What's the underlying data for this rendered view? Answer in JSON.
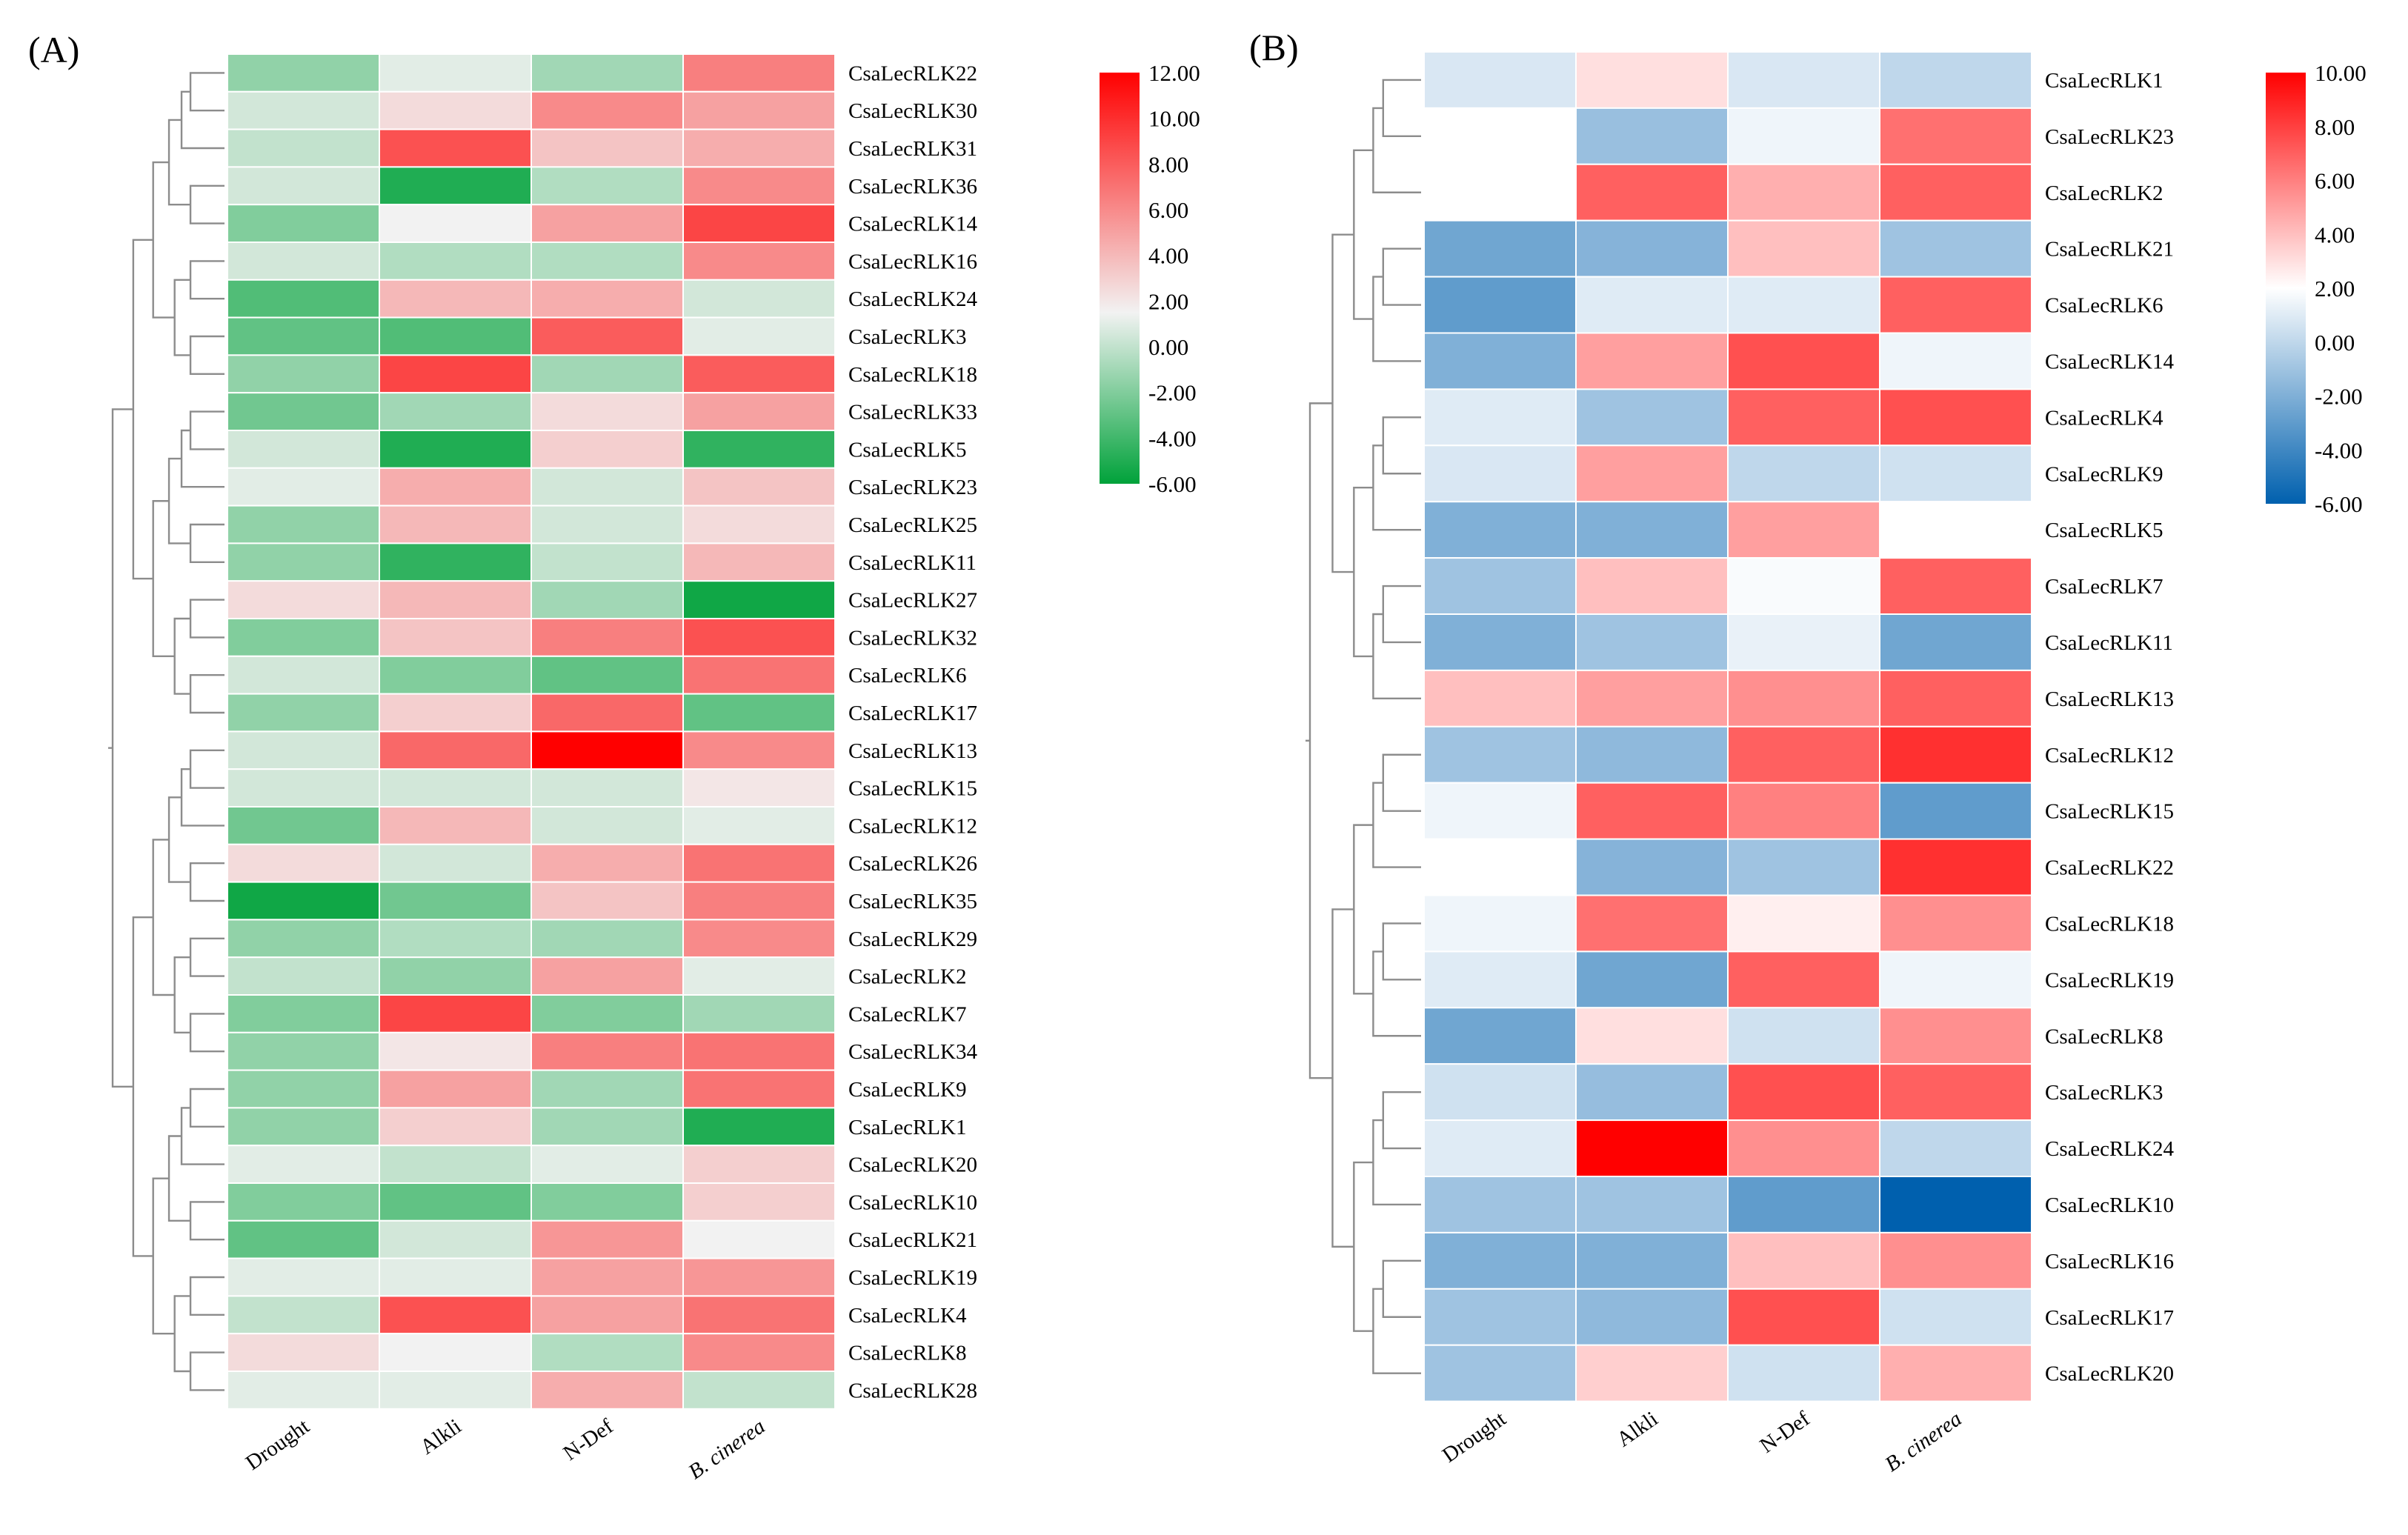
{
  "chart_data": [
    {
      "panel_label": "(A)",
      "type": "heatmap",
      "columns": [
        "Drought",
        "Alkli",
        "N-Def",
        "B. cinerea"
      ],
      "color_scale": {
        "min": -6,
        "max": 12,
        "ticks": [
          "12.00",
          "10.00",
          "8.00",
          "6.00",
          "4.00",
          "2.00",
          "0.00",
          "-2.00",
          "-4.00",
          "-6.00"
        ],
        "colors": [
          [
            -6,
            "#00a23a"
          ],
          [
            1.5,
            "#f2f2f2"
          ],
          [
            12,
            "#ff0000"
          ]
        ]
      },
      "rows": [
        {
          "gene": "CsaLecRLK22",
          "values": [
            -1.5,
            1.0,
            -1.0,
            6.5
          ]
        },
        {
          "gene": "CsaLecRLK30",
          "values": [
            0.5,
            2.5,
            6.0,
            5.0
          ]
        },
        {
          "gene": "CsaLecRLK31",
          "values": [
            0.0,
            8.5,
            3.5,
            4.5
          ]
        },
        {
          "gene": "CsaLecRLK36",
          "values": [
            0.5,
            -5.0,
            -0.5,
            6.0
          ]
        },
        {
          "gene": "CsaLecRLK14",
          "values": [
            -2.0,
            1.5,
            5.0,
            9.0
          ]
        },
        {
          "gene": "CsaLecRLK16",
          "values": [
            0.5,
            -0.5,
            -0.5,
            6.0
          ]
        },
        {
          "gene": "CsaLecRLK24",
          "values": [
            -3.5,
            4.0,
            4.5,
            0.5
          ]
        },
        {
          "gene": "CsaLecRLK3",
          "values": [
            -3.0,
            -3.5,
            8.0,
            1.0
          ]
        },
        {
          "gene": "CsaLecRLK18",
          "values": [
            -1.5,
            9.0,
            -1.0,
            8.0
          ]
        },
        {
          "gene": "CsaLecRLK33",
          "values": [
            -2.5,
            -1.0,
            2.5,
            5.0
          ]
        },
        {
          "gene": "CsaLecRLK5",
          "values": [
            0.5,
            -5.0,
            3.0,
            -4.5
          ]
        },
        {
          "gene": "CsaLecRLK23",
          "values": [
            1.0,
            4.5,
            0.5,
            3.5
          ]
        },
        {
          "gene": "CsaLecRLK25",
          "values": [
            -1.5,
            4.0,
            0.5,
            2.5
          ]
        },
        {
          "gene": "CsaLecRLK11",
          "values": [
            -1.5,
            -4.5,
            0.0,
            4.0
          ]
        },
        {
          "gene": "CsaLecRLK27",
          "values": [
            2.5,
            4.0,
            -1.0,
            -5.5
          ]
        },
        {
          "gene": "CsaLecRLK32",
          "values": [
            -2.0,
            3.5,
            6.5,
            8.5
          ]
        },
        {
          "gene": "CsaLecRLK6",
          "values": [
            0.5,
            -2.0,
            -3.0,
            7.0
          ]
        },
        {
          "gene": "CsaLecRLK17",
          "values": [
            -1.5,
            3.0,
            7.5,
            -3.0
          ]
        },
        {
          "gene": "CsaLecRLK13",
          "values": [
            0.5,
            7.5,
            12.0,
            6.0
          ]
        },
        {
          "gene": "CsaLecRLK15",
          "values": [
            0.5,
            0.5,
            0.5,
            2.0
          ]
        },
        {
          "gene": "CsaLecRLK12",
          "values": [
            -2.5,
            4.0,
            0.5,
            1.0
          ]
        },
        {
          "gene": "CsaLecRLK26",
          "values": [
            2.5,
            0.5,
            4.5,
            7.0
          ]
        },
        {
          "gene": "CsaLecRLK35",
          "values": [
            -5.5,
            -2.5,
            3.5,
            6.5
          ]
        },
        {
          "gene": "CsaLecRLK29",
          "values": [
            -1.5,
            -0.5,
            -1.0,
            6.0
          ]
        },
        {
          "gene": "CsaLecRLK2",
          "values": [
            0.0,
            -1.5,
            5.0,
            1.0
          ]
        },
        {
          "gene": "CsaLecRLK7",
          "values": [
            -2.0,
            9.0,
            -2.0,
            -1.0
          ]
        },
        {
          "gene": "CsaLecRLK34",
          "values": [
            -1.5,
            2.0,
            6.5,
            7.0
          ]
        },
        {
          "gene": "CsaLecRLK9",
          "values": [
            -1.5,
            5.0,
            -1.0,
            7.0
          ]
        },
        {
          "gene": "CsaLecRLK1",
          "values": [
            -1.5,
            3.0,
            -1.0,
            -5.0
          ]
        },
        {
          "gene": "CsaLecRLK20",
          "values": [
            1.0,
            0.0,
            1.0,
            3.0
          ]
        },
        {
          "gene": "CsaLecRLK10",
          "values": [
            -2.0,
            -3.0,
            -2.0,
            3.0
          ]
        },
        {
          "gene": "CsaLecRLK21",
          "values": [
            -3.0,
            0.5,
            5.5,
            1.5
          ]
        },
        {
          "gene": "CsaLecRLK19",
          "values": [
            1.0,
            1.0,
            5.0,
            5.5
          ]
        },
        {
          "gene": "CsaLecRLK4",
          "values": [
            0.0,
            8.5,
            5.0,
            7.0
          ]
        },
        {
          "gene": "CsaLecRLK8",
          "values": [
            2.5,
            1.5,
            -0.5,
            6.0
          ]
        },
        {
          "gene": "CsaLecRLK28",
          "values": [
            1.0,
            1.0,
            4.5,
            0.0
          ]
        }
      ]
    },
    {
      "panel_label": "(B)",
      "type": "heatmap",
      "columns": [
        "Drought",
        "Alkli",
        "N-Def",
        "B. cinerea"
      ],
      "color_scale": {
        "min": -6,
        "max": 10,
        "ticks": [
          "10.00",
          "8.00",
          "6.00",
          "4.00",
          "2.00",
          "0.00",
          "-2.00",
          "-4.00",
          "-6.00"
        ],
        "colors": [
          [
            -6,
            "#0060ae"
          ],
          [
            2,
            "#ffffff"
          ],
          [
            10,
            "#ff0000"
          ]
        ]
      },
      "rows": [
        {
          "gene": "CsaLecRLK1",
          "values": [
            0.8,
            3.0,
            0.8,
            0.0
          ]
        },
        {
          "gene": "CsaLecRLK23",
          "values": [
            2.0,
            -1.2,
            1.5,
            6.5
          ]
        },
        {
          "gene": "CsaLecRLK2",
          "values": [
            2.0,
            7.0,
            4.5,
            7.0
          ]
        },
        {
          "gene": "CsaLecRLK21",
          "values": [
            -2.5,
            -1.8,
            4.0,
            -1.0
          ]
        },
        {
          "gene": "CsaLecRLK6",
          "values": [
            -3.0,
            1.0,
            1.0,
            7.0
          ]
        },
        {
          "gene": "CsaLecRLK14",
          "values": [
            -2.0,
            5.0,
            7.5,
            1.5
          ]
        },
        {
          "gene": "CsaLecRLK4",
          "values": [
            1.0,
            -1.0,
            7.0,
            7.5
          ]
        },
        {
          "gene": "CsaLecRLK9",
          "values": [
            0.8,
            5.0,
            0.0,
            0.5
          ]
        },
        {
          "gene": "CsaLecRLK5",
          "values": [
            -2.0,
            -2.0,
            5.0,
            2.0
          ]
        },
        {
          "gene": "CsaLecRLK7",
          "values": [
            -1.0,
            4.0,
            1.8,
            7.0
          ]
        },
        {
          "gene": "CsaLecRLK11",
          "values": [
            -2.0,
            -1.0,
            1.3,
            -2.5
          ]
        },
        {
          "gene": "CsaLecRLK13",
          "values": [
            4.0,
            5.0,
            5.5,
            7.0
          ]
        },
        {
          "gene": "CsaLecRLK12",
          "values": [
            -1.0,
            -1.5,
            7.0,
            8.5
          ]
        },
        {
          "gene": "CsaLecRLK15",
          "values": [
            1.5,
            7.0,
            6.0,
            -3.0
          ]
        },
        {
          "gene": "CsaLecRLK22",
          "values": [
            2.0,
            -1.8,
            -1.0,
            8.5
          ]
        },
        {
          "gene": "CsaLecRLK18",
          "values": [
            1.5,
            6.5,
            2.5,
            5.5
          ]
        },
        {
          "gene": "CsaLecRLK19",
          "values": [
            1.0,
            -2.5,
            7.0,
            1.5
          ]
        },
        {
          "gene": "CsaLecRLK8",
          "values": [
            -2.5,
            3.0,
            0.5,
            5.5
          ]
        },
        {
          "gene": "CsaLecRLK3",
          "values": [
            0.5,
            -1.3,
            7.5,
            7.0
          ]
        },
        {
          "gene": "CsaLecRLK24",
          "values": [
            1.0,
            10.0,
            5.5,
            0.0
          ]
        },
        {
          "gene": "CsaLecRLK10",
          "values": [
            -1.0,
            -1.0,
            -3.0,
            -6.0
          ]
        },
        {
          "gene": "CsaLecRLK16",
          "values": [
            -2.0,
            -2.0,
            4.0,
            5.5
          ]
        },
        {
          "gene": "CsaLecRLK17",
          "values": [
            -1.0,
            -1.5,
            7.5,
            0.5
          ]
        },
        {
          "gene": "CsaLecRLK20",
          "values": [
            -1.0,
            3.5,
            0.5,
            4.5
          ]
        }
      ]
    }
  ]
}
